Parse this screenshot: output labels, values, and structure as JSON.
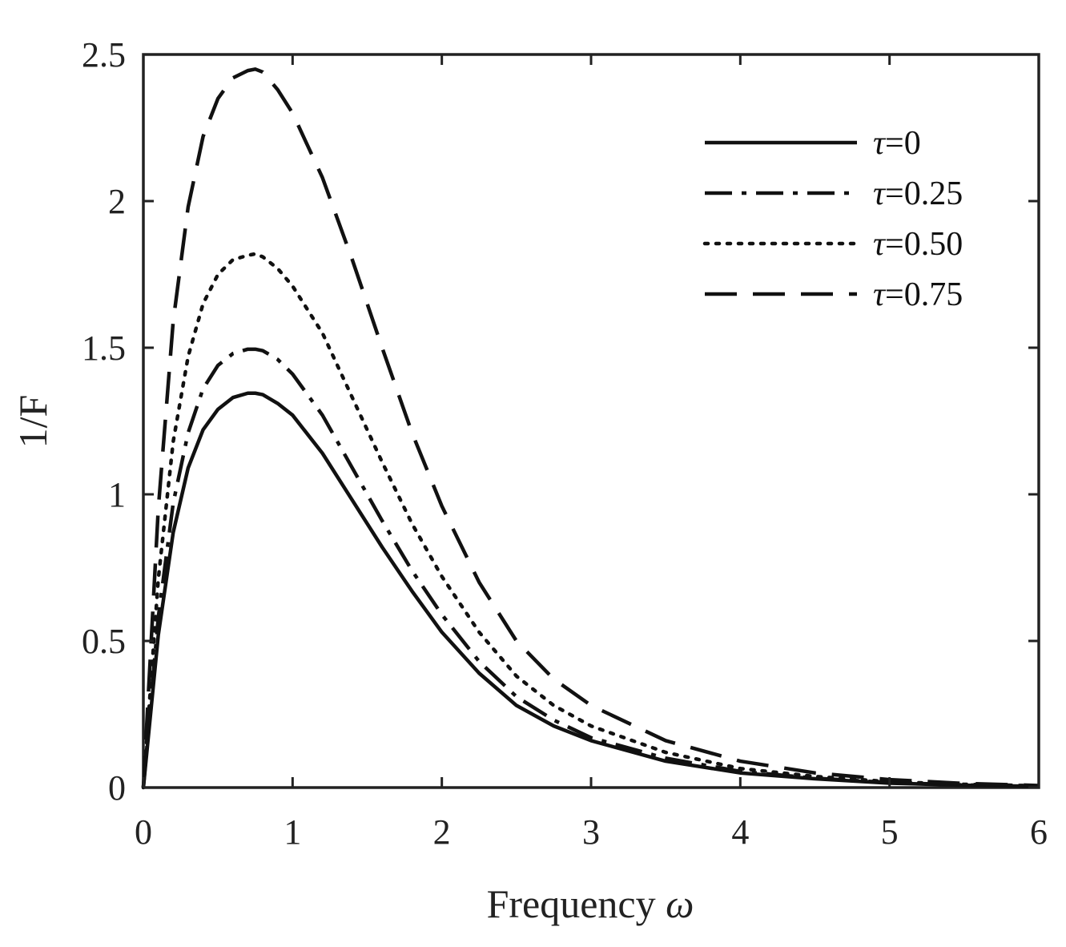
{
  "chart_data": {
    "type": "line",
    "title": "",
    "xlabel": "Frequency",
    "xlabel_symbol": "ω",
    "ylabel": "1/F",
    "xlim": [
      0,
      6
    ],
    "ylim": [
      0,
      2.5
    ],
    "x_ticks": [
      "0",
      "1",
      "2",
      "3",
      "4",
      "5",
      "6"
    ],
    "y_ticks": [
      "0",
      "0.5",
      "1",
      "1.5",
      "2",
      "2.5"
    ],
    "grid": false,
    "legend_position": "top-right",
    "x": [
      0,
      0.1,
      0.2,
      0.3,
      0.4,
      0.5,
      0.6,
      0.7,
      0.75,
      0.8,
      0.9,
      1.0,
      1.2,
      1.4,
      1.6,
      1.8,
      2.0,
      2.25,
      2.5,
      2.75,
      3.0,
      3.5,
      4.0,
      4.5,
      5.0,
      5.5,
      6.0
    ],
    "series": [
      {
        "name": "τ=0",
        "style": "solid",
        "values": [
          0,
          0.52,
          0.87,
          1.09,
          1.22,
          1.29,
          1.33,
          1.345,
          1.345,
          1.34,
          1.31,
          1.27,
          1.14,
          0.98,
          0.82,
          0.67,
          0.53,
          0.39,
          0.28,
          0.21,
          0.16,
          0.09,
          0.05,
          0.03,
          0.015,
          0.008,
          0.004
        ]
      },
      {
        "name": "τ=0.25",
        "style": "dashdot",
        "values": [
          0,
          0.58,
          0.97,
          1.21,
          1.36,
          1.44,
          1.48,
          1.495,
          1.495,
          1.49,
          1.46,
          1.41,
          1.27,
          1.09,
          0.91,
          0.74,
          0.59,
          0.43,
          0.31,
          0.23,
          0.17,
          0.1,
          0.055,
          0.032,
          0.017,
          0.009,
          0.005
        ]
      },
      {
        "name": "τ=0.50",
        "style": "dotted",
        "values": [
          0,
          0.71,
          1.18,
          1.47,
          1.65,
          1.75,
          1.8,
          1.815,
          1.82,
          1.81,
          1.77,
          1.71,
          1.55,
          1.33,
          1.11,
          0.9,
          0.72,
          0.53,
          0.38,
          0.28,
          0.21,
          0.12,
          0.065,
          0.038,
          0.02,
          0.011,
          0.006
        ]
      },
      {
        "name": "τ=0.75",
        "style": "dashed",
        "values": [
          0,
          0.95,
          1.59,
          1.98,
          2.22,
          2.35,
          2.42,
          2.445,
          2.45,
          2.44,
          2.38,
          2.3,
          2.08,
          1.8,
          1.5,
          1.21,
          0.96,
          0.7,
          0.5,
          0.37,
          0.28,
          0.16,
          0.09,
          0.05,
          0.027,
          0.014,
          0.007
        ]
      }
    ]
  }
}
